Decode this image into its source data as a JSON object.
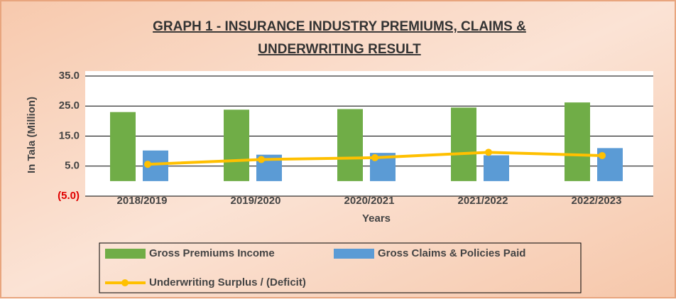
{
  "chart_data": {
    "type": "bar_line",
    "title": [
      "GRAPH 1 - INSURANCE INDUSTRY PREMIUMS, CLAIMS &",
      "UNDERWRITING RESULT"
    ],
    "y_label": "In Tala (Million)",
    "x_label": "Years",
    "categories": [
      "2018/2019",
      "2019/2020",
      "2020/2021",
      "2021/2022",
      "2022/2023"
    ],
    "series": [
      {
        "name": "Gross Premiums Income",
        "type": "bar",
        "color": "#70ad47",
        "values": [
          23.0,
          23.8,
          24.0,
          24.5,
          26.2
        ]
      },
      {
        "name": "Gross Claims & Policies Paid",
        "type": "bar",
        "color": "#5b9bd5",
        "values": [
          10.2,
          8.8,
          9.4,
          8.6,
          11.0
        ]
      },
      {
        "name": "Underwriting Surplus / (Deficit)",
        "type": "line",
        "color": "#ffc000",
        "values": [
          5.6,
          7.2,
          7.8,
          9.6,
          8.5
        ]
      }
    ],
    "ylim": [
      -5,
      35
    ],
    "yticks": [
      {
        "value": 35,
        "label": "35.0"
      },
      {
        "value": 25,
        "label": "25.0"
      },
      {
        "value": 15,
        "label": "15.0"
      },
      {
        "value": 5,
        "label": "5.0"
      },
      {
        "value": -5,
        "label": "(5.0)"
      }
    ],
    "negative_tick_color": "#e00000",
    "grid": true
  }
}
